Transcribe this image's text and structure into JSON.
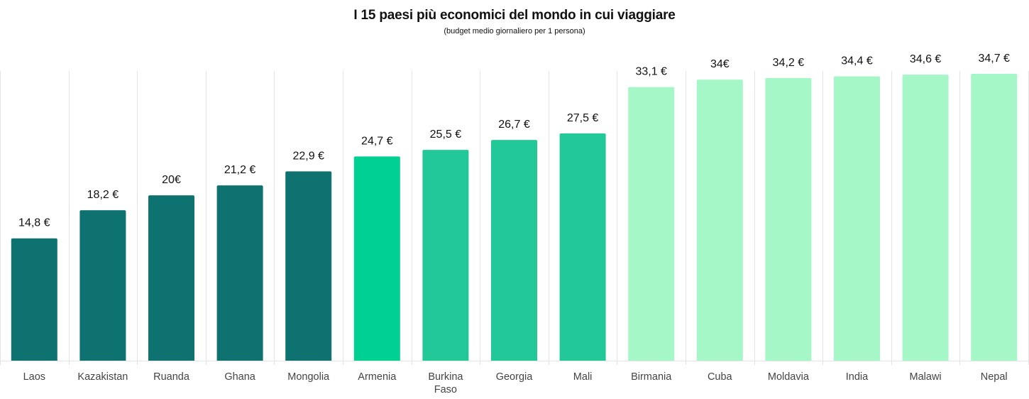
{
  "chart_data": {
    "type": "bar",
    "title": "I 15 paesi più economici del mondo in cui viaggiare",
    "subtitle": "(budget medio giornaliero per 1 persona)",
    "xlabel": "",
    "ylabel": "",
    "ylim": [
      0,
      34.7
    ],
    "grid": "vertical separators between categories",
    "categories": [
      "Laos",
      "Kazakistan",
      "Ruanda",
      "Ghana",
      "Mongolia",
      "Armenia",
      "Burkina Faso",
      "Georgia",
      "Mali",
      "Birmania",
      "Cuba",
      "Moldavia",
      "India",
      "Malawi",
      "Nepal"
    ],
    "values": [
      14.8,
      18.2,
      20,
      21.2,
      22.9,
      24.7,
      25.5,
      26.7,
      27.5,
      33.1,
      34,
      34.2,
      34.4,
      34.6,
      34.7
    ],
    "data_labels": [
      "14,8 €",
      "18,2 €",
      "20€",
      "21,2 €",
      "22,9 €",
      "24,7 €",
      "25,5 €",
      "26,7 €",
      "27,5 €",
      "33,1 €",
      "34€",
      "34,2 €",
      "34,4 €",
      "34,6 €",
      "34,7 €"
    ],
    "colors": [
      "#0e7370",
      "#0e7370",
      "#0e7370",
      "#0e7370",
      "#0e7370",
      "#00d091",
      "#22c898",
      "#22c898",
      "#22c898",
      "#a5f7c7",
      "#a5f7c7",
      "#a5f7c7",
      "#a5f7c7",
      "#a5f7c7",
      "#a5f7c7"
    ]
  }
}
